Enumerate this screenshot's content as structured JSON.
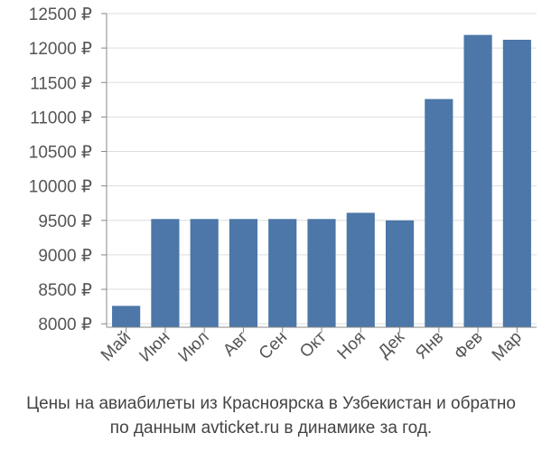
{
  "chart_data": {
    "type": "bar",
    "categories": [
      "Май",
      "Июн",
      "Июл",
      "Авг",
      "Сен",
      "Окт",
      "Ноя",
      "Дек",
      "Янв",
      "Фев",
      "Мар"
    ],
    "values": [
      8260,
      9520,
      9520,
      9520,
      9520,
      9520,
      9610,
      9500,
      11260,
      12190,
      12120
    ],
    "ylim": [
      7950,
      12500
    ],
    "yticks": [
      8000,
      8500,
      9000,
      9500,
      10000,
      10500,
      11000,
      11500,
      12000,
      12500
    ],
    "ytick_labels": [
      "8000 ₽",
      "8500 ₽",
      "9000 ₽",
      "9500 ₽",
      "10000 ₽",
      "10500 ₽",
      "11000 ₽",
      "11500 ₽",
      "12000 ₽",
      "12500 ₽"
    ],
    "grid": true,
    "bar_color": "#4c77a8",
    "grid_color": "#dddddd",
    "axis_color": "#888888",
    "tick_label_color": "#555555"
  },
  "caption": {
    "line1": "Цены на авиабилеты из Красноярска в Узбекистан и обратно",
    "line2": "по данным avticket.ru в динамике за год."
  }
}
